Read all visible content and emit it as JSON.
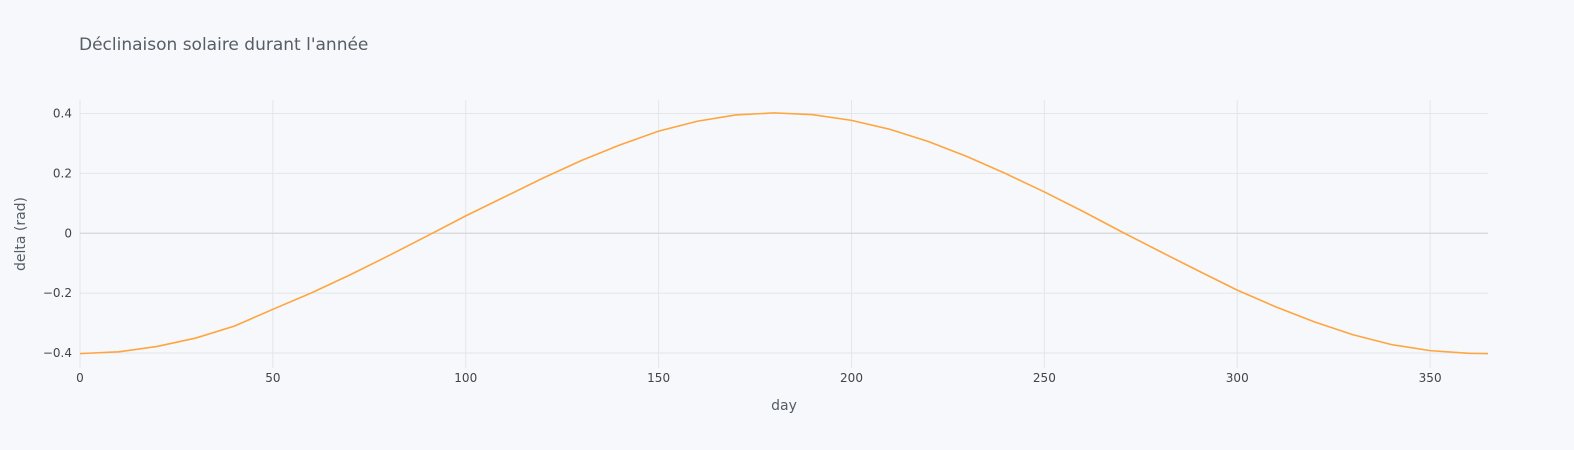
{
  "chart_data": {
    "type": "line",
    "title": "Déclinaison solaire durant l'année",
    "xlabel": "day",
    "ylabel": "delta (rad)",
    "xlim": [
      0,
      365
    ],
    "ylim": [
      -0.45,
      0.445
    ],
    "x_ticks": [
      0,
      50,
      100,
      150,
      200,
      250,
      300,
      350
    ],
    "x_tick_labels": [
      "0",
      "50",
      "100",
      "150",
      "200",
      "250",
      "300",
      "350"
    ],
    "y_ticks": [
      -0.4,
      -0.2,
      0,
      0.2,
      0.4
    ],
    "y_tick_labels": [
      "−0.4",
      "−0.2",
      "0",
      "0.2",
      "0.4"
    ],
    "grid": true,
    "series": [
      {
        "color": "#ffa53e",
        "x": [
          0,
          10,
          20,
          30,
          40,
          50,
          60,
          70,
          80,
          90,
          100,
          110,
          120,
          130,
          140,
          150,
          160,
          170,
          180,
          190,
          200,
          210,
          220,
          230,
          240,
          250,
          260,
          270,
          280,
          290,
          300,
          310,
          320,
          330,
          340,
          350,
          360,
          365
        ],
        "y": [
          -0.402,
          -0.396,
          -0.378,
          -0.35,
          -0.31,
          -0.254,
          -0.199,
          -0.139,
          -0.075,
          -0.009,
          0.058,
          0.121,
          0.184,
          0.243,
          0.295,
          0.341,
          0.374,
          0.395,
          0.402,
          0.396,
          0.377,
          0.347,
          0.306,
          0.256,
          0.199,
          0.138,
          0.073,
          0.005,
          -0.061,
          -0.126,
          -0.19,
          -0.246,
          -0.296,
          -0.339,
          -0.372,
          -0.392,
          -0.401,
          -0.402
        ]
      }
    ]
  }
}
